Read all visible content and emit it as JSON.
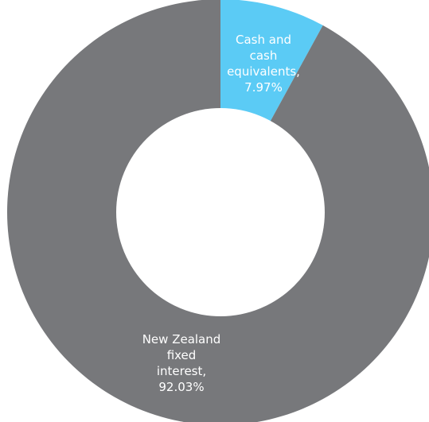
{
  "chart_data": {
    "type": "pie",
    "variant": "donut",
    "start_angle_deg": 0,
    "direction": "clockwise",
    "slices": [
      {
        "name": "Cash and cash equivalents",
        "value": 7.97,
        "color": "#5bcbf5",
        "label_lines": [
          "Cash and",
          "cash",
          "equivalents,",
          "7.97%"
        ]
      },
      {
        "name": "New Zealand fixed interest",
        "value": 92.03,
        "color": "#77787b",
        "label_lines": [
          "New Zealand",
          "fixed",
          "interest,",
          "92.03%"
        ]
      }
    ]
  }
}
